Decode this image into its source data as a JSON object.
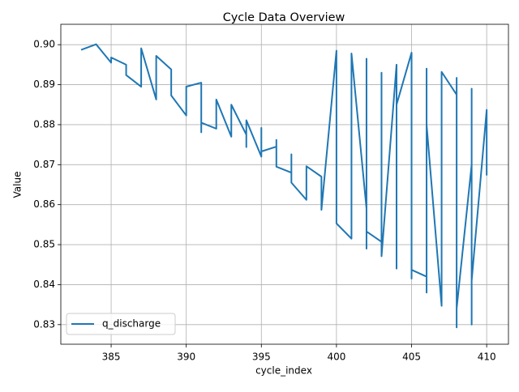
{
  "chart_data": {
    "type": "line",
    "title": "Cycle Data Overview",
    "x_label": "cycle_index",
    "y_label": "Value",
    "x": [
      383,
      384,
      385,
      385,
      386,
      386,
      387,
      387,
      388,
      388,
      389,
      389,
      390,
      390,
      391,
      391,
      391,
      392,
      392,
      393,
      393,
      394,
      394,
      394,
      395,
      395,
      395,
      396,
      396,
      396,
      397,
      397,
      397,
      398,
      398,
      399,
      399,
      400,
      400,
      401,
      401,
      402,
      402,
      402,
      402,
      403,
      403,
      403,
      404,
      404,
      404,
      405,
      405,
      405,
      406,
      406,
      406,
      406,
      407,
      407,
      408,
      408,
      408,
      408,
      409,
      409,
      409,
      409,
      410,
      410
    ],
    "series": [
      {
        "name": "q_discharge",
        "color": "#1f77b4",
        "values": [
          0.8987,
          0.9001,
          0.8955,
          0.8968,
          0.895,
          0.8924,
          0.8895,
          0.8991,
          0.8863,
          0.8972,
          0.8938,
          0.8873,
          0.8823,
          0.8895,
          0.8905,
          0.8781,
          0.8805,
          0.879,
          0.8863,
          0.877,
          0.885,
          0.8775,
          0.8744,
          0.8811,
          0.872,
          0.8792,
          0.8733,
          0.8745,
          0.8762,
          0.8695,
          0.868,
          0.8726,
          0.8655,
          0.8612,
          0.8696,
          0.867,
          0.8587,
          0.8985,
          0.8553,
          0.8515,
          0.8978,
          0.859,
          0.8965,
          0.849,
          0.8533,
          0.8507,
          0.893,
          0.8471,
          0.895,
          0.844,
          0.885,
          0.898,
          0.8415,
          0.8437,
          0.842,
          0.894,
          0.838,
          0.88,
          0.8347,
          0.8932,
          0.8875,
          0.8293,
          0.8917,
          0.834,
          0.87,
          0.889,
          0.83,
          0.841,
          0.8837,
          0.8673
        ]
      }
    ],
    "xlim": [
      381.65,
      411.45
    ],
    "xticks": [
      385,
      390,
      395,
      400,
      405,
      410
    ],
    "ylim": [
      0.8251,
      0.9051
    ],
    "yticks": [
      0.83,
      0.84,
      0.85,
      0.86,
      0.87,
      0.88,
      0.89,
      {
        "value": 0.9,
        "label": "0.90"
      }
    ],
    "grid": true,
    "legend_position": "lower left"
  }
}
